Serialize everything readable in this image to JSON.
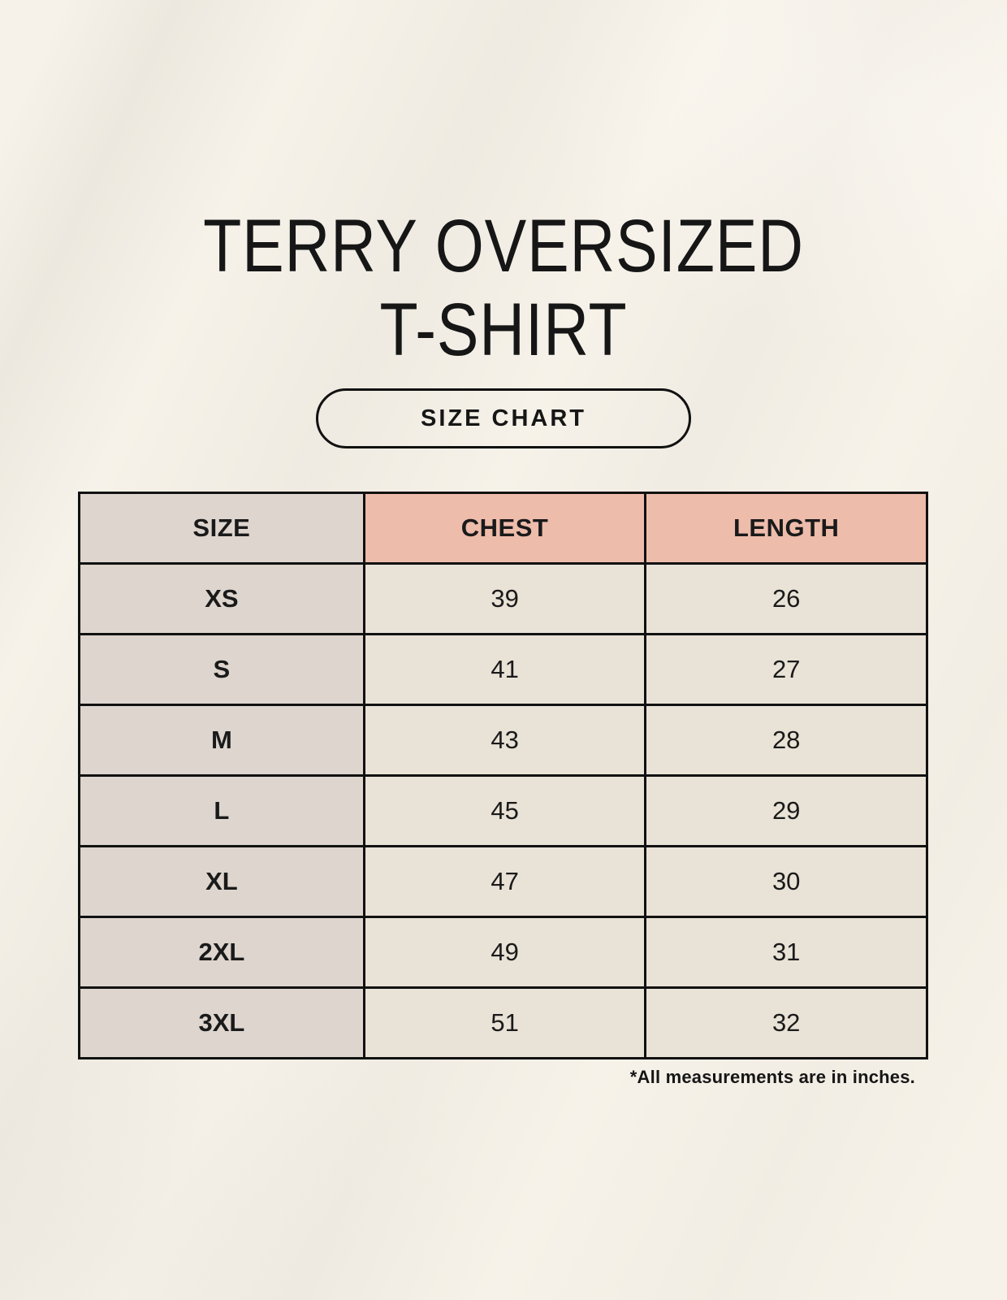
{
  "header": {
    "title_line1": "TERRY OVERSIZED",
    "title_line2": "T-SHIRT",
    "button_label": "SIZE CHART"
  },
  "footer": {
    "note": "*All measurements are in inches."
  },
  "colors": {
    "page_background": "#f6f2e9",
    "header_accent_pink": "#eebcab",
    "size_column_taupe": "#ddd5ce",
    "body_cell_cream": "#e9e2d6",
    "table_border": "#111111",
    "text": "#1a1a1a"
  },
  "chart_data": {
    "type": "table",
    "title": "TERRY OVERSIZED T-SHIRT",
    "subtitle": "SIZE CHART",
    "columns": [
      "SIZE",
      "CHEST",
      "LENGTH"
    ],
    "rows": [
      {
        "size": "XS",
        "chest": 39,
        "length": 26
      },
      {
        "size": "S",
        "chest": 41,
        "length": 27
      },
      {
        "size": "M",
        "chest": 43,
        "length": 28
      },
      {
        "size": "L",
        "chest": 45,
        "length": 29
      },
      {
        "size": "XL",
        "chest": 47,
        "length": 30
      },
      {
        "size": "2XL",
        "chest": 49,
        "length": 31
      },
      {
        "size": "3XL",
        "chest": 51,
        "length": 32
      }
    ],
    "units": "inches",
    "note": "*All measurements are in inches."
  }
}
